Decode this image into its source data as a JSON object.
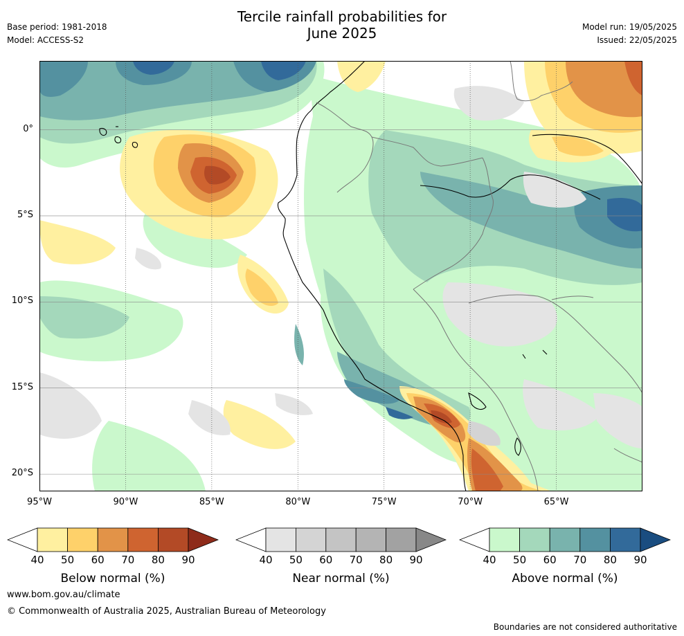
{
  "title": {
    "line1": "Tercile rainfall probabilities for",
    "line2": "June 2025"
  },
  "meta_left": {
    "base_period": "Base period: 1981-2018",
    "model": "Model: ACCESS-S2"
  },
  "meta_right": {
    "model_run": "Model run: 19/05/2025",
    "issued": "Issued: 22/05/2025"
  },
  "axes": {
    "lon_range": [
      -95,
      -60
    ],
    "lat_range": [
      -21,
      4
    ],
    "lat_ticks": [
      {
        "value": 0,
        "label": "0°"
      },
      {
        "value": -5,
        "label": "5°S"
      },
      {
        "value": -10,
        "label": "10°S"
      },
      {
        "value": -15,
        "label": "15°S"
      },
      {
        "value": -20,
        "label": "20°S"
      }
    ],
    "lon_ticks": [
      {
        "value": -95,
        "label": "95°W"
      },
      {
        "value": -90,
        "label": "90°W"
      },
      {
        "value": -85,
        "label": "85°W"
      },
      {
        "value": -80,
        "label": "80°W"
      },
      {
        "value": -75,
        "label": "75°W"
      },
      {
        "value": -70,
        "label": "70°W"
      },
      {
        "value": -65,
        "label": "65°W"
      }
    ]
  },
  "colorbars": [
    {
      "name": "Below normal (%)",
      "ticks": [
        "40",
        "50",
        "60",
        "70",
        "80",
        "90"
      ],
      "colors": [
        "#ffffff",
        "#fff0a0",
        "#fed16a",
        "#e29348",
        "#cf6430",
        "#b34a26",
        "#8e2b1a"
      ]
    },
    {
      "name": "Near normal (%)",
      "ticks": [
        "40",
        "50",
        "60",
        "70",
        "80",
        "90"
      ],
      "colors": [
        "#ffffff",
        "#e4e4e4",
        "#d4d4d4",
        "#c4c4c4",
        "#b4b4b4",
        "#a2a2a2",
        "#888888"
      ]
    },
    {
      "name": "Above normal (%)",
      "ticks": [
        "40",
        "50",
        "60",
        "70",
        "80",
        "90"
      ],
      "colors": [
        "#ffffff",
        "#caf8cc",
        "#a4d8bb",
        "#79b3ad",
        "#5491a0",
        "#326a9a",
        "#1a4d80"
      ]
    }
  ],
  "map_fields": {
    "above_normal": [
      {
        "lon": -91.5,
        "lat": 2.8,
        "prob": 80
      },
      {
        "lon": -79.0,
        "lat": 2.8,
        "prob": 80
      },
      {
        "lon": -70.5,
        "lat": -3.0,
        "prob": 60
      },
      {
        "lon": -62.0,
        "lat": -5.0,
        "prob": 70
      },
      {
        "lon": -75.0,
        "lat": -15.5,
        "prob": 70
      },
      {
        "lon": -92.5,
        "lat": -11.0,
        "prob": 60
      }
    ],
    "below_normal": [
      {
        "lon": -84.5,
        "lat": -2.5,
        "prob": 70
      },
      {
        "lon": -62.0,
        "lat": 2.5,
        "prob": 60
      },
      {
        "lon": -72.0,
        "lat": -16.8,
        "prob": 70
      },
      {
        "lon": -68.5,
        "lat": -20.0,
        "prob": 70
      },
      {
        "lon": -81.5,
        "lat": -9.0,
        "prob": 60
      }
    ],
    "near_normal": [
      {
        "lon": -66.5,
        "lat": -11.0,
        "prob": 50
      },
      {
        "lon": -88.0,
        "lat": -14.0,
        "prob": 50
      },
      {
        "lon": -67.0,
        "lat": 3.0,
        "prob": 50
      }
    ]
  },
  "footer": {
    "website": "www.bom.gov.au/climate",
    "copyright": "© Commonwealth of Australia 2025, Australian Bureau of Meteorology",
    "disclaimer": "Boundaries are not considered authoritative"
  }
}
